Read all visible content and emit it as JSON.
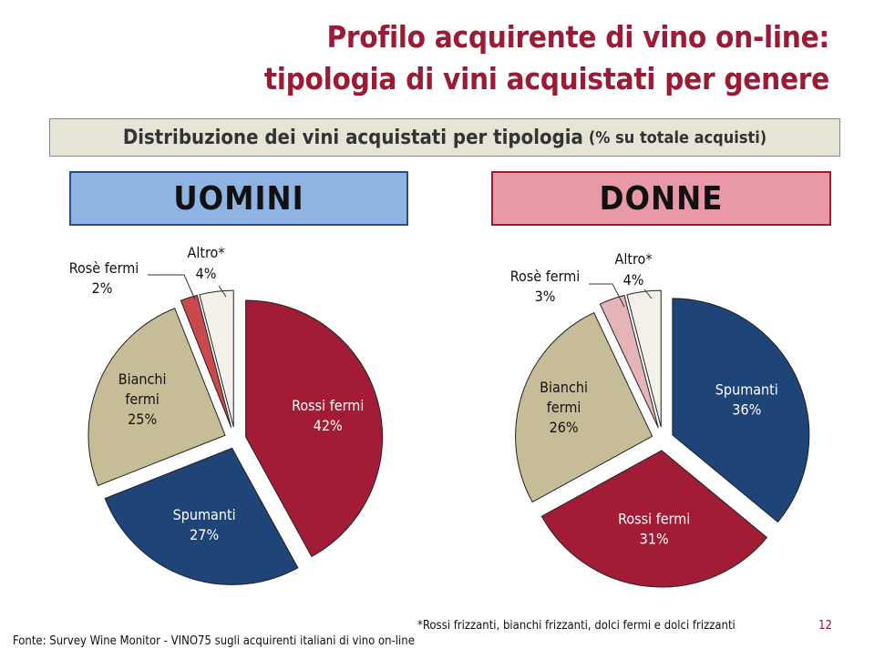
{
  "title": {
    "line1": "Profilo acquirente di vino on-line:",
    "line2": "tipologia di vini acquistati per genere"
  },
  "subtitle": {
    "main": "Distribuzione dei vini acquistati per tipologia",
    "note": "(% su totale acquisti)"
  },
  "groups": {
    "men": "UOMINI",
    "women": "DONNE"
  },
  "footnote": "*Rossi frizzanti, bianchi frizzanti, dolci fermi e dolci frizzanti",
  "source": "Fonte: Survey Wine Monitor - VINO75 sugli acquirenti italiani di vino on-line",
  "page_number": "12",
  "chart_data": [
    {
      "type": "pie",
      "title": "UOMINI",
      "slices": [
        {
          "name": "Rossi fermi",
          "value": 42,
          "label": "42%",
          "color": "#a31c36",
          "text_color": "#ffffff",
          "label_lines": [
            "Rossi fermi",
            "42%"
          ]
        },
        {
          "name": "Spumanti",
          "value": 27,
          "label": "27%",
          "color": "#1e4478",
          "text_color": "#ffffff",
          "label_lines": [
            "Spumanti",
            "27%"
          ]
        },
        {
          "name": "Bianchi fermi",
          "value": 25,
          "label": "25%",
          "color": "#c6bd98",
          "text_color": "#111111",
          "label_lines": [
            "Bianchi",
            "fermi",
            "25%"
          ]
        },
        {
          "name": "Rosè fermi",
          "value": 2,
          "label": "2%",
          "color": "#c9494f",
          "text_color": "#111111",
          "label_lines": [
            "Rosè fermi",
            "2%"
          ]
        },
        {
          "name": "Altro*",
          "value": 4,
          "label": "4%",
          "color": "#f2f0e8",
          "text_color": "#111111",
          "label_lines": [
            "Altro*",
            "4%"
          ]
        }
      ]
    },
    {
      "type": "pie",
      "title": "DONNE",
      "slices": [
        {
          "name": "Spumanti",
          "value": 36,
          "label": "36%",
          "color": "#1e4478",
          "text_color": "#ffffff",
          "label_lines": [
            "Spumanti",
            "36%"
          ]
        },
        {
          "name": "Rossi fermi",
          "value": 31,
          "label": "31%",
          "color": "#a31c36",
          "text_color": "#ffffff",
          "label_lines": [
            "Rossi fermi",
            "31%"
          ]
        },
        {
          "name": "Bianchi fermi",
          "value": 26,
          "label": "26%",
          "color": "#c6bd98",
          "text_color": "#111111",
          "label_lines": [
            "Bianchi",
            "fermi",
            "26%"
          ]
        },
        {
          "name": "Rosè fermi",
          "value": 3,
          "label": "3%",
          "color": "#e4b4b8",
          "text_color": "#111111",
          "label_lines": [
            "Rosè fermi",
            "3%"
          ]
        },
        {
          "name": "Altro*",
          "value": 4,
          "label": "4%",
          "color": "#f2f0e8",
          "text_color": "#111111",
          "label_lines": [
            "Altro*",
            "4%"
          ]
        }
      ]
    }
  ]
}
